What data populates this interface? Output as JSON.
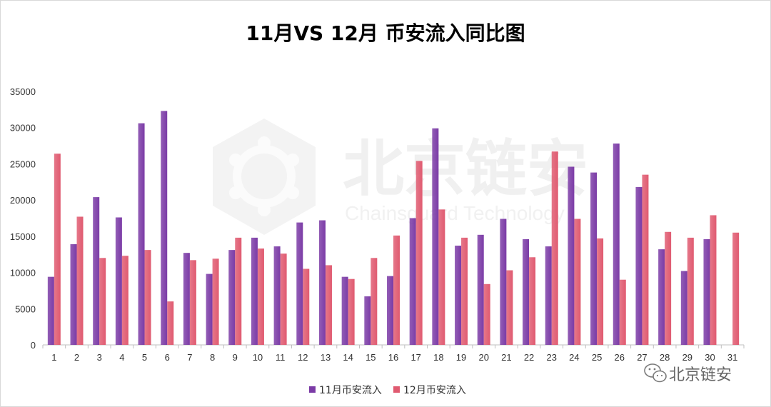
{
  "chart_data": {
    "type": "bar",
    "title": "11月VS 12月 币安流入同比图",
    "xlabel": "",
    "ylabel": "",
    "categories": [
      "1",
      "2",
      "3",
      "4",
      "5",
      "6",
      "7",
      "8",
      "9",
      "10",
      "11",
      "12",
      "13",
      "14",
      "15",
      "16",
      "17",
      "18",
      "19",
      "20",
      "21",
      "22",
      "23",
      "24",
      "25",
      "26",
      "27",
      "28",
      "29",
      "30",
      "31"
    ],
    "series": [
      {
        "name": "11月币安流入",
        "color": "#7b3ba6",
        "values": [
          9400,
          13900,
          20400,
          17600,
          30600,
          32300,
          12700,
          9800,
          13100,
          14800,
          13600,
          16900,
          17200,
          9400,
          6700,
          9500,
          17500,
          29900,
          13700,
          15200,
          17400,
          14600,
          13600,
          24600,
          23800,
          27800,
          21800,
          13200,
          10200,
          14600,
          null
        ]
      },
      {
        "name": "12月币安流入",
        "color": "#e05a70",
        "values": [
          26400,
          17700,
          12000,
          12300,
          13100,
          6000,
          11700,
          11900,
          14800,
          13300,
          12600,
          10500,
          11000,
          9100,
          12000,
          15100,
          25400,
          18700,
          14800,
          8400,
          10300,
          12100,
          26700,
          17400,
          14700,
          9000,
          23500,
          15600,
          14800,
          17900,
          15500
        ]
      }
    ],
    "ylim": [
      0,
      35000
    ],
    "yticks": [
      0,
      5000,
      10000,
      15000,
      20000,
      25000,
      30000,
      35000
    ],
    "grid": false,
    "legend": "bottom"
  },
  "watermark": {
    "text": "北京链安",
    "subtext": "Chainsguard Technology",
    "icon": "hexagon-logo-icon"
  },
  "brand": {
    "text": "北京链安",
    "icon": "wechat-icon"
  }
}
